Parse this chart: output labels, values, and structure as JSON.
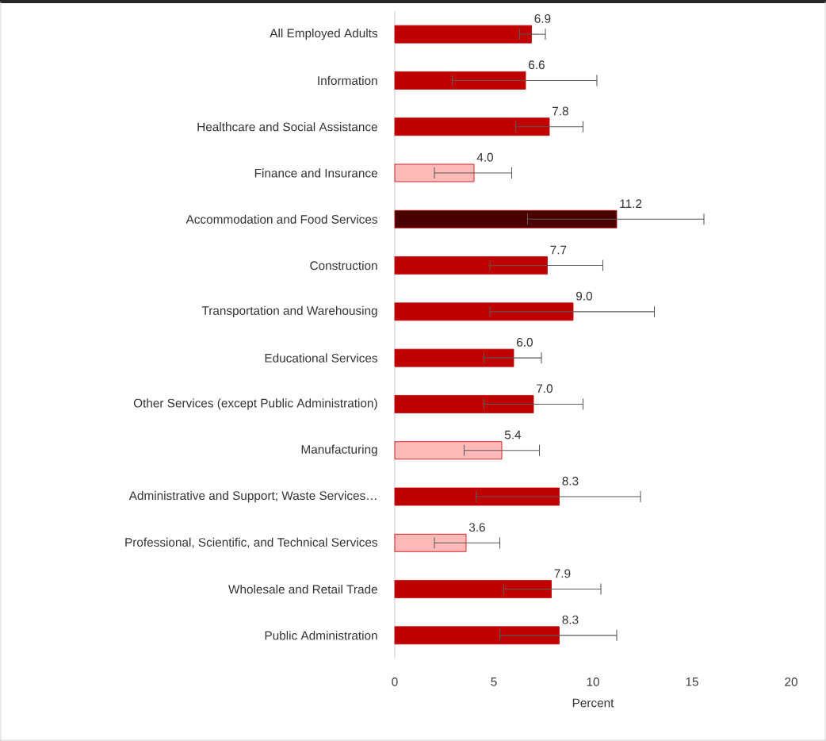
{
  "chart_data": {
    "type": "bar",
    "orientation": "horizontal",
    "xlabel": "Percent",
    "categories": [
      "All Employed Adults",
      "Information",
      "Healthcare and Social Assistance",
      "Finance and Insurance",
      "Accommodation and Food Services",
      "Construction",
      "Transportation and Warehousing",
      "Educational Services",
      "Other Services (except Public Administration)",
      "Manufacturing",
      "Administrative and Support; Waste  Services…",
      "Professional, Scientific, and Technical Services",
      "Wholesale and Retail Trade",
      "Public Administration"
    ],
    "values": [
      6.9,
      6.6,
      7.8,
      4.0,
      11.2,
      7.7,
      9.0,
      6.0,
      7.0,
      5.4,
      8.3,
      3.6,
      7.9,
      8.3
    ],
    "value_labels": [
      "6.9",
      "6.6",
      "7.8",
      "4.0",
      "11.2",
      "7.7",
      "9.0",
      "6.0",
      "7.0",
      "5.4",
      "8.3",
      "3.6",
      "7.9",
      "8.3"
    ],
    "errors": [
      [
        6.3,
        7.6
      ],
      [
        2.9,
        10.2
      ],
      [
        6.1,
        9.5
      ],
      [
        2.0,
        5.9
      ],
      [
        6.7,
        15.6
      ],
      [
        4.8,
        10.5
      ],
      [
        4.8,
        13.1
      ],
      [
        4.5,
        7.4
      ],
      [
        4.5,
        9.5
      ],
      [
        3.5,
        7.3
      ],
      [
        4.1,
        12.4
      ],
      [
        2.0,
        5.3
      ],
      [
        5.5,
        10.4
      ],
      [
        5.3,
        11.2
      ]
    ],
    "colors": [
      "#c00000",
      "#c00000",
      "#c00000",
      "#ffb9b9",
      "#4a0000",
      "#c00000",
      "#c00000",
      "#c00000",
      "#c00000",
      "#ffb9b9",
      "#c00000",
      "#ffb9b9",
      "#c00000",
      "#c00000"
    ],
    "xlim": [
      0,
      20
    ],
    "xticks": [
      0,
      5,
      10,
      15,
      20
    ]
  }
}
